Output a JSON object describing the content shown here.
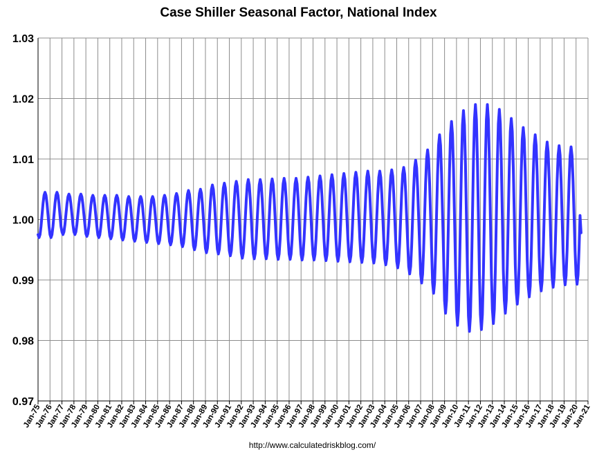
{
  "chart_data": {
    "type": "line",
    "title": "Case Shiller Seasonal Factor, National Index",
    "xlabel": "",
    "ylabel": "",
    "ylim": [
      0.97,
      1.03
    ],
    "y_ticks": [
      "0.97",
      "0.98",
      "0.99",
      "1.00",
      "1.01",
      "1.02",
      "1.03"
    ],
    "x_range": [
      "Jan-75",
      "Jan-21"
    ],
    "x_tick_labels": [
      "Jan-75",
      "Jan-76",
      "Jan-77",
      "Jan-78",
      "Jan-79",
      "Jan-80",
      "Jan-81",
      "Jan-82",
      "Jan-83",
      "Jan-84",
      "Jan-85",
      "Jan-86",
      "Jan-87",
      "Jan-88",
      "Jan-89",
      "Jan-90",
      "Jan-91",
      "Jan-92",
      "Jan-93",
      "Jan-94",
      "Jan-95",
      "Jan-96",
      "Jan-97",
      "Jan-98",
      "Jan-99",
      "Jan-00",
      "Jan-01",
      "Jan-02",
      "Jan-03",
      "Jan-04",
      "Jan-05",
      "Jan-06",
      "Jan-07",
      "Jan-08",
      "Jan-09",
      "Jan-10",
      "Jan-11",
      "Jan-12",
      "Jan-13",
      "Jan-14",
      "Jan-15",
      "Jan-16",
      "Jan-17",
      "Jan-18",
      "Jan-19",
      "Jan-20",
      "Jan-21"
    ],
    "grid": "vertical lines at each year, horizontal lines at each y tick",
    "legend": "none",
    "series_color": "#3333ff",
    "seasonal_pattern": "annual cycle: trough in Jan-Feb, peak in Jun-Jul",
    "series": [
      {
        "annual_extremes": [
          {
            "year": "1975",
            "trough": 0.997,
            "peak": 1.0045
          },
          {
            "year": "1976",
            "trough": 0.997,
            "peak": 1.0045
          },
          {
            "year": "1977",
            "trough": 0.9975,
            "peak": 1.0042
          },
          {
            "year": "1978",
            "trough": 0.9975,
            "peak": 1.0042
          },
          {
            "year": "1979",
            "trough": 0.9972,
            "peak": 1.004
          },
          {
            "year": "1980",
            "trough": 0.997,
            "peak": 1.004
          },
          {
            "year": "1981",
            "trough": 0.9968,
            "peak": 1.004
          },
          {
            "year": "1982",
            "trough": 0.9966,
            "peak": 1.0038
          },
          {
            "year": "1983",
            "trough": 0.9964,
            "peak": 1.0038
          },
          {
            "year": "1984",
            "trough": 0.9962,
            "peak": 1.0038
          },
          {
            "year": "1985",
            "trough": 0.996,
            "peak": 1.004
          },
          {
            "year": "1986",
            "trough": 0.9958,
            "peak": 1.0043
          },
          {
            "year": "1987",
            "trough": 0.9955,
            "peak": 1.0048
          },
          {
            "year": "1988",
            "trough": 0.995,
            "peak": 1.005
          },
          {
            "year": "1989",
            "trough": 0.9945,
            "peak": 1.0057
          },
          {
            "year": "1990",
            "trough": 0.9943,
            "peak": 1.006
          },
          {
            "year": "1991",
            "trough": 0.994,
            "peak": 1.0063
          },
          {
            "year": "1992",
            "trough": 0.9936,
            "peak": 1.0066
          },
          {
            "year": "1993",
            "trough": 0.9935,
            "peak": 1.0066
          },
          {
            "year": "1994",
            "trough": 0.9935,
            "peak": 1.0067
          },
          {
            "year": "1995",
            "trough": 0.9934,
            "peak": 1.0068
          },
          {
            "year": "1996",
            "trough": 0.9934,
            "peak": 1.0068
          },
          {
            "year": "1997",
            "trough": 0.9933,
            "peak": 1.007
          },
          {
            "year": "1998",
            "trough": 0.9933,
            "peak": 1.0072
          },
          {
            "year": "1999",
            "trough": 0.9932,
            "peak": 1.0074
          },
          {
            "year": "2000",
            "trough": 0.9931,
            "peak": 1.0076
          },
          {
            "year": "2001",
            "trough": 0.993,
            "peak": 1.0078
          },
          {
            "year": "2002",
            "trough": 0.9929,
            "peak": 1.008
          },
          {
            "year": "2003",
            "trough": 0.9928,
            "peak": 1.008
          },
          {
            "year": "2004",
            "trough": 0.9925,
            "peak": 1.0082
          },
          {
            "year": "2005",
            "trough": 0.992,
            "peak": 1.0086
          },
          {
            "year": "2006",
            "trough": 0.991,
            "peak": 1.0098
          },
          {
            "year": "2007",
            "trough": 0.9895,
            "peak": 1.0115
          },
          {
            "year": "2008",
            "trough": 0.9878,
            "peak": 1.014
          },
          {
            "year": "2009",
            "trough": 0.9845,
            "peak": 1.0162
          },
          {
            "year": "2010",
            "trough": 0.9825,
            "peak": 1.018
          },
          {
            "year": "2011",
            "trough": 0.9815,
            "peak": 1.019
          },
          {
            "year": "2012",
            "trough": 0.9818,
            "peak": 1.019
          },
          {
            "year": "2013",
            "trough": 0.9828,
            "peak": 1.0182
          },
          {
            "year": "2014",
            "trough": 0.9845,
            "peak": 1.0167
          },
          {
            "year": "2015",
            "trough": 0.986,
            "peak": 1.0152
          },
          {
            "year": "2016",
            "trough": 0.9872,
            "peak": 1.014
          },
          {
            "year": "2017",
            "trough": 0.9882,
            "peak": 1.0128
          },
          {
            "year": "2018",
            "trough": 0.9888,
            "peak": 1.0122
          },
          {
            "year": "2019",
            "trough": 0.9892,
            "peak": 1.012
          },
          {
            "year": "2020",
            "trough": 0.9893,
            "peak": null
          }
        ],
        "end_point": {
          "x": "Jun-20",
          "y": 0.9978
        }
      }
    ]
  },
  "footer": {
    "source_url": "http://www.calculatedriskblog.com/"
  }
}
